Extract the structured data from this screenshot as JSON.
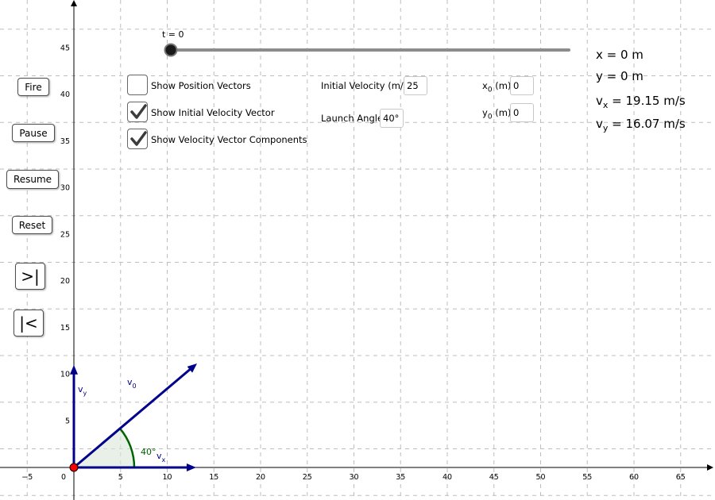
{
  "axes": {
    "x_ticks": [
      "−5",
      "0",
      "5",
      "10",
      "15",
      "20",
      "25",
      "30",
      "35",
      "40",
      "45",
      "50",
      "55",
      "60",
      "65"
    ],
    "y_ticks": [
      "5",
      "10",
      "15",
      "20",
      "25",
      "30",
      "35",
      "40",
      "45"
    ]
  },
  "slider": {
    "label": "t = 0",
    "value": 0
  },
  "buttons": {
    "fire": "Fire",
    "pause": "Pause",
    "resume": "Resume",
    "reset": "Reset",
    "step_forward": ">|",
    "step_back": "|<"
  },
  "checkboxes": [
    {
      "label": "Show Position Vectors",
      "checked": false
    },
    {
      "label": "Show Initial Velocity Vector",
      "checked": true
    },
    {
      "label": "Show Velocity Vector Components",
      "checked": true
    }
  ],
  "inputs": {
    "initial_velocity_label": "Initial Velocity (m/s)",
    "initial_velocity_value": "25",
    "launch_angle_label": "Launch Angle",
    "launch_angle_value": "40°",
    "x0_label_main": "x",
    "x0_label_sub": "0",
    "x0_label_unit": " (m)",
    "x0_value": "0",
    "y0_label_main": "y",
    "y0_label_sub": "0",
    "y0_label_unit": " (m)",
    "y0_value": "0"
  },
  "readouts": {
    "x": "x = 0 m",
    "y": "y = 0 m",
    "vx_main": "v",
    "vx_sub": "x",
    "vx_value": " = 19.15 m/s",
    "vy_main": "v",
    "vy_sub": "y",
    "vy_value": " = 16.07 m/s"
  },
  "vectors": {
    "v0_main": "v",
    "v0_sub": "0",
    "vx_main": "v",
    "vx_sub": "x",
    "vy_main": "v",
    "vy_sub": "y",
    "angle_label": "40°",
    "speed": 25,
    "angle_deg": 40
  },
  "colors": {
    "vector": "#00008b",
    "angle_arc": "#006400",
    "angle_fill": "#d9e6d9",
    "launch_point": "#ff0000",
    "grid": "#bdbdbd"
  }
}
